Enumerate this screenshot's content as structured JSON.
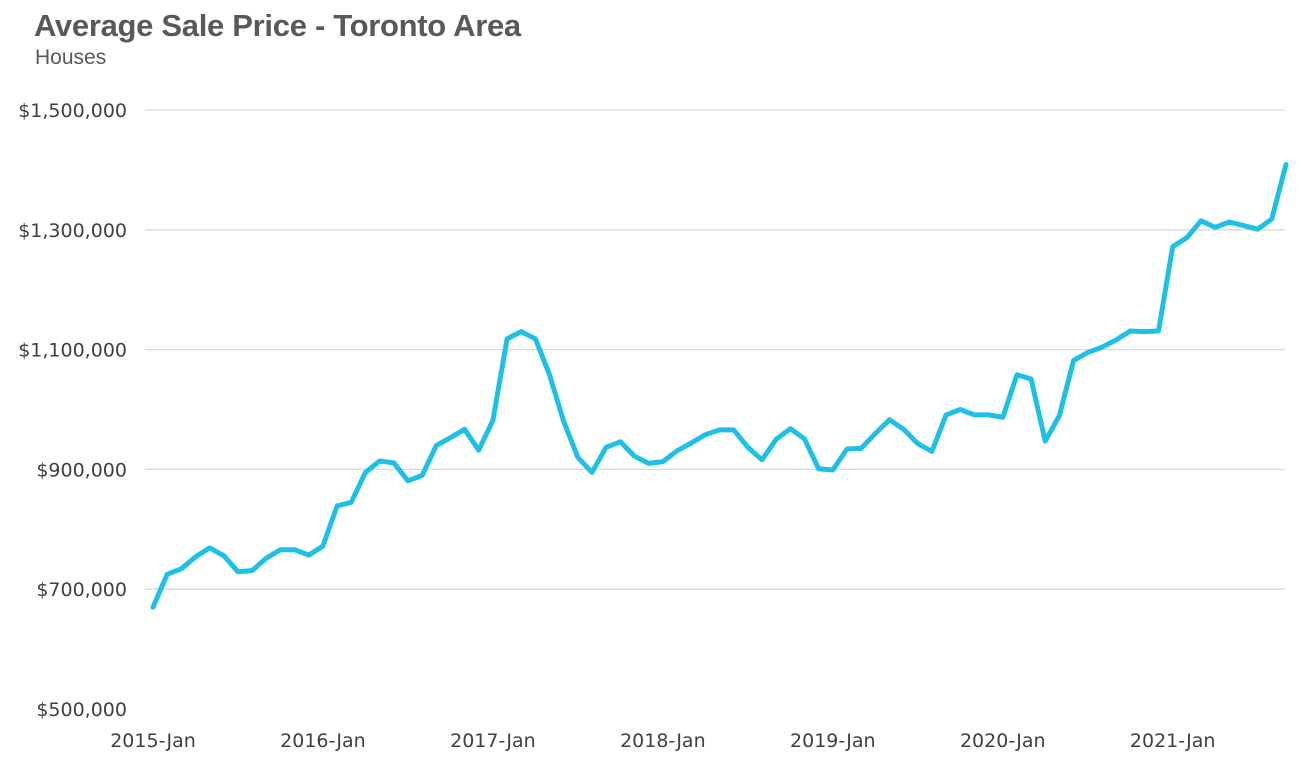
{
  "chart_data": {
    "type": "line",
    "title": "Average Sale Price - Toronto Area",
    "subtitle": "Houses",
    "xlabel": "",
    "ylabel": "",
    "ylim": [
      500000,
      1500000
    ],
    "yticks": [
      500000,
      700000,
      900000,
      1100000,
      1300000,
      1500000
    ],
    "ytick_labels": [
      "$500,000",
      "$700,000",
      "$900,000",
      "$1,100,000",
      "$1,300,000",
      "$1,500,000"
    ],
    "xtick_labels": [
      "2015-Jan",
      "2016-Jan",
      "2017-Jan",
      "2018-Jan",
      "2019-Jan",
      "2020-Jan",
      "2021-Jan"
    ],
    "xtick_index": [
      0,
      12,
      24,
      36,
      48,
      60,
      72
    ],
    "grid": true,
    "legend": "none",
    "series": [
      {
        "name": "Houses",
        "color": "#1fc0e5",
        "values": [
          670000,
          725000,
          734000,
          754000,
          769000,
          756000,
          729000,
          731000,
          752000,
          766000,
          766000,
          757000,
          772000,
          839000,
          845000,
          895000,
          914000,
          911000,
          881000,
          890000,
          940000,
          953000,
          967000,
          932000,
          982000,
          1118000,
          1130000,
          1118000,
          1058000,
          980000,
          920000,
          895000,
          937000,
          946000,
          922000,
          910000,
          913000,
          931000,
          944000,
          958000,
          966000,
          966000,
          937000,
          916000,
          950000,
          968000,
          951000,
          901000,
          899000,
          934000,
          935000,
          960000,
          983000,
          967000,
          943000,
          930000,
          991000,
          1000000,
          991000,
          991000,
          987000,
          1058000,
          1051000,
          947000,
          990000,
          1082000,
          1095000,
          1104000,
          1116000,
          1131000,
          1130000,
          1131000,
          1272000,
          1287000,
          1315000,
          1304000,
          1313000,
          1307000,
          1301000,
          1318000,
          1409000
        ]
      }
    ]
  }
}
